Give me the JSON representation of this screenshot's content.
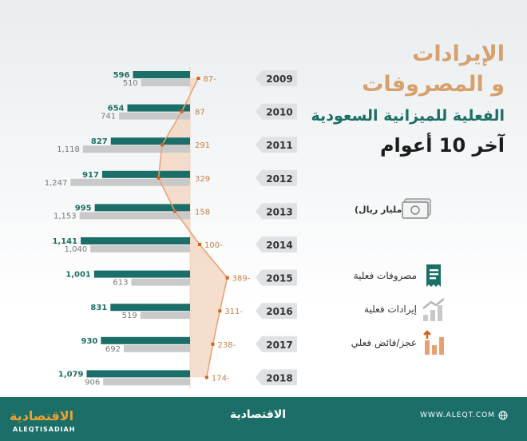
{
  "title": {
    "line1": "الإيرادات",
    "line2": "و المصروفات",
    "line3": "الفعلية للميزانية السعودية",
    "line4": "آخر 10 أعوام"
  },
  "unit": "(مليار ريال)",
  "legend": [
    {
      "label": "مصروفات فعلية",
      "icon": "receipt-icon",
      "color": "#1c6f68"
    },
    {
      "label": "إيرادات فعلية",
      "icon": "growth-bars-icon",
      "color": "#c8c8c8"
    },
    {
      "label": "عجز/فائض فعلي",
      "icon": "deficit-bars-icon",
      "color": "#e8a070"
    }
  ],
  "colors": {
    "expenses": "#1c6f68",
    "revenues": "#c9c9c9",
    "balance_line": "#e8a070",
    "balance_fill": "#f3d3bd",
    "year_badge": "#dfe2e4",
    "footer": "#1c6f68"
  },
  "chart_data": {
    "type": "bar",
    "orientation": "horizontal",
    "categories": [
      "2009",
      "2010",
      "2011",
      "2012",
      "2013",
      "2014",
      "2015",
      "2016",
      "2017",
      "2018"
    ],
    "series": [
      {
        "name": "مصروفات فعلية",
        "values": [
          596,
          654,
          827,
          917,
          995,
          1141,
          1001,
          831,
          930,
          1079
        ],
        "labels": [
          "596",
          "654",
          "827",
          "917",
          "995",
          "1,141",
          "1,001",
          "831",
          "930",
          "1,079"
        ]
      },
      {
        "name": "إيرادات فعلية",
        "values": [
          510,
          741,
          1118,
          1247,
          1153,
          1040,
          613,
          519,
          692,
          906
        ],
        "labels": [
          "510",
          "741",
          "1,118",
          "1,247",
          "1,153",
          "1,040",
          "613",
          "519",
          "692",
          "906"
        ]
      }
    ],
    "balance": {
      "name": "عجز/فائض فعلي",
      "values": [
        -87,
        87,
        291,
        329,
        158,
        -100,
        -389,
        -311,
        -238,
        -174
      ],
      "labels": [
        "87-",
        "87",
        "291",
        "329",
        "158",
        "100-",
        "389-",
        "311-",
        "238-",
        "174-"
      ]
    }
  },
  "footer": {
    "brand_arabic": "الاقتصادية",
    "brand_latin": "ALEQTISADIAH",
    "brand_center": "الاقتصادية",
    "website": "WWW.ALEQT.COM"
  }
}
